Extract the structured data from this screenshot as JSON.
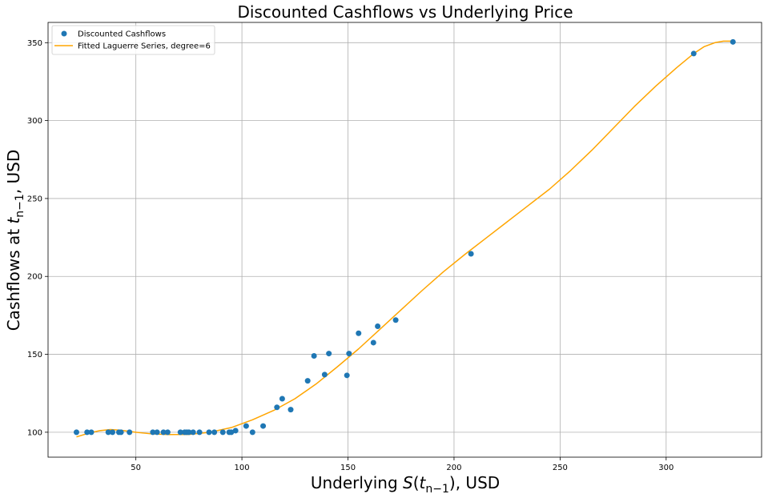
{
  "chart_data": {
    "type": "scatter",
    "title": "Discounted Cashflows vs Underlying Price",
    "xlabel": {
      "pre": "Underlying ",
      "var": "S",
      "arg_open": "(",
      "arg_var": "t",
      "sub": "n−1",
      "arg_close": ")",
      "post": ", USD"
    },
    "ylabel": {
      "pre": "Cashflows at ",
      "var": "t",
      "sub": "n−1",
      "post": ", USD"
    },
    "xlim": [
      8.6,
      345
    ],
    "ylim": [
      84,
      363
    ],
    "xticks": [
      50,
      100,
      150,
      200,
      250,
      300
    ],
    "yticks": [
      100,
      150,
      200,
      250,
      300,
      350
    ],
    "grid": true,
    "legend_position": "upper-left",
    "series": [
      {
        "name": "Discounted Cashflows",
        "kind": "scatter",
        "color": "#1f77b4",
        "points": [
          [
            22,
            100
          ],
          [
            27,
            100
          ],
          [
            29,
            100
          ],
          [
            37,
            100
          ],
          [
            39,
            100
          ],
          [
            42,
            100
          ],
          [
            43,
            100
          ],
          [
            47,
            100
          ],
          [
            58,
            100
          ],
          [
            60,
            100
          ],
          [
            63,
            100
          ],
          [
            65,
            100
          ],
          [
            71,
            100
          ],
          [
            73,
            100
          ],
          [
            74,
            100
          ],
          [
            75,
            100
          ],
          [
            77,
            100
          ],
          [
            80,
            100
          ],
          [
            84.5,
            100
          ],
          [
            87,
            100
          ],
          [
            91,
            100
          ],
          [
            94,
            100
          ],
          [
            95,
            100
          ],
          [
            97,
            101
          ],
          [
            102,
            104
          ],
          [
            105,
            100
          ],
          [
            110,
            104
          ],
          [
            116.5,
            116
          ],
          [
            119,
            121.5
          ],
          [
            123,
            114.5
          ],
          [
            131,
            133
          ],
          [
            134,
            149
          ],
          [
            139,
            137
          ],
          [
            141,
            150.5
          ],
          [
            149.5,
            136.5
          ],
          [
            150.5,
            150.5
          ],
          [
            155,
            163.5
          ],
          [
            162,
            157.5
          ],
          [
            164,
            168
          ],
          [
            172.5,
            172
          ],
          [
            208,
            214.5
          ],
          [
            313,
            343
          ],
          [
            331.5,
            350.5
          ]
        ]
      },
      {
        "name": "Fitted Laguerre Series, degree=6",
        "kind": "line",
        "color": "#ffa500",
        "points": [
          [
            22,
            97
          ],
          [
            28,
            99.5
          ],
          [
            33,
            101
          ],
          [
            38,
            101.7
          ],
          [
            43,
            101.3
          ],
          [
            50,
            100
          ],
          [
            57,
            99
          ],
          [
            65,
            98.5
          ],
          [
            75,
            98.6
          ],
          [
            85,
            100
          ],
          [
            95,
            103
          ],
          [
            105,
            108
          ],
          [
            115,
            114
          ],
          [
            125,
            121.5
          ],
          [
            135,
            131
          ],
          [
            145,
            142
          ],
          [
            155,
            153.5
          ],
          [
            165,
            166
          ],
          [
            175,
            178.5
          ],
          [
            185,
            191
          ],
          [
            195,
            203
          ],
          [
            205,
            214
          ],
          [
            215,
            224.5
          ],
          [
            225,
            235
          ],
          [
            235,
            245.5
          ],
          [
            245,
            256
          ],
          [
            255,
            268
          ],
          [
            265,
            281
          ],
          [
            275,
            295
          ],
          [
            285,
            309
          ],
          [
            295,
            322
          ],
          [
            305,
            334
          ],
          [
            313,
            343
          ],
          [
            318,
            347.5
          ],
          [
            323,
            350
          ],
          [
            327,
            351
          ],
          [
            332,
            351
          ]
        ]
      }
    ]
  }
}
